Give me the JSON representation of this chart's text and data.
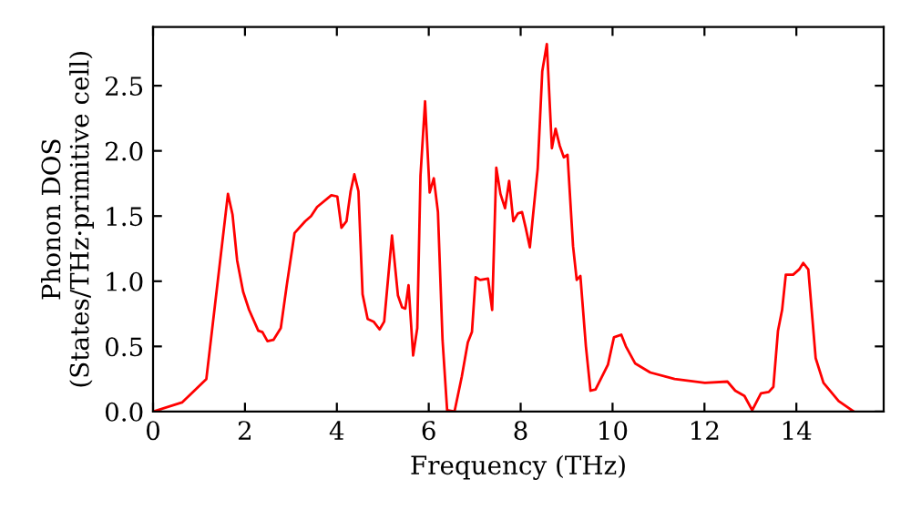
{
  "chart_data": {
    "type": "line",
    "xlabel": "Frequency (THz)",
    "ylabel": "Phonon DOS\n(States/THz·primitive cell)",
    "xlim": [
      0,
      15.9
    ],
    "ylim": [
      0,
      2.95
    ],
    "xticks": [
      0,
      2,
      4,
      6,
      8,
      10,
      12,
      14
    ],
    "yticks": [
      {
        "value": 0,
        "label": "0.0"
      },
      {
        "value": 0.5,
        "label": "0.5"
      },
      {
        "value": 1,
        "label": "1.0"
      },
      {
        "value": 1.5,
        "label": "1.5"
      },
      {
        "value": 2,
        "label": "2.0"
      },
      {
        "value": 2.5,
        "label": "2.5"
      }
    ],
    "grid": false,
    "legend": false,
    "marker": "none",
    "line_style": "solid",
    "series": [
      {
        "color": "#ff0000",
        "x": [
          0,
          0.63,
          1.16,
          1.63,
          1.73,
          1.83,
          1.96,
          2.09,
          2.29,
          2.38,
          2.49,
          2.62,
          2.78,
          2.91,
          3.08,
          3.31,
          3.44,
          3.57,
          3.88,
          4.01,
          4.1,
          4.21,
          4.3,
          4.38,
          4.47,
          4.56,
          4.67,
          4.8,
          4.93,
          5.03,
          5.2,
          5.33,
          5.42,
          5.49,
          5.56,
          5.66,
          5.75,
          5.82,
          5.92,
          6.02,
          6.11,
          6.2,
          6.3,
          6.4,
          6.56,
          6.72,
          6.85,
          6.94,
          7.02,
          7.12,
          7.29,
          7.38,
          7.47,
          7.56,
          7.66,
          7.75,
          7.84,
          7.94,
          8.03,
          8.11,
          8.2,
          8.37,
          8.47,
          8.57,
          8.68,
          8.76,
          8.85,
          8.94,
          9.02,
          9.14,
          9.22,
          9.3,
          9.42,
          9.52,
          9.63,
          9.9,
          10.03,
          10.19,
          10.29,
          10.49,
          10.82,
          11.35,
          12.01,
          12.5,
          12.67,
          12.87,
          13.04,
          13.23,
          13.4,
          13.5,
          13.6,
          13.69,
          13.77,
          13.93,
          14.06,
          14.15,
          14.26,
          14.42,
          14.59,
          14.92,
          15.25
        ],
        "values": [
          0,
          0.07,
          0.25,
          1.67,
          1.51,
          1.16,
          0.92,
          0.78,
          0.62,
          0.61,
          0.54,
          0.55,
          0.64,
          0.97,
          1.37,
          1.46,
          1.5,
          1.57,
          1.66,
          1.65,
          1.41,
          1.46,
          1.69,
          1.82,
          1.69,
          0.9,
          0.71,
          0.69,
          0.63,
          0.69,
          1.35,
          0.89,
          0.8,
          0.79,
          0.97,
          0.43,
          0.64,
          1.81,
          2.38,
          1.68,
          1.79,
          1.53,
          0.55,
          0.01,
          0.0,
          0.27,
          0.53,
          0.61,
          1.03,
          1.01,
          1.02,
          0.78,
          1.87,
          1.67,
          1.56,
          1.77,
          1.46,
          1.52,
          1.53,
          1.41,
          1.26,
          1.86,
          2.61,
          2.82,
          2.02,
          2.17,
          2.04,
          1.95,
          1.97,
          1.27,
          1.01,
          1.04,
          0.5,
          0.16,
          0.17,
          0.36,
          0.57,
          0.59,
          0.5,
          0.37,
          0.3,
          0.25,
          0.22,
          0.23,
          0.16,
          0.12,
          0.01,
          0.14,
          0.15,
          0.19,
          0.62,
          0.78,
          1.05,
          1.05,
          1.09,
          1.14,
          1.09,
          0.41,
          0.22,
          0.08,
          0.0
        ]
      }
    ]
  }
}
